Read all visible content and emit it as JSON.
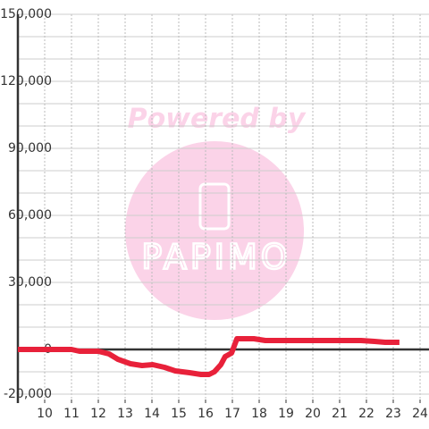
{
  "chart_data": {
    "type": "line",
    "watermark": {
      "line1": "Powered by",
      "line2": "PAPIMO"
    },
    "x": [
      9.0,
      11.0,
      11.3,
      12.0,
      12.4,
      12.73,
      13.2,
      13.63,
      14.03,
      14.47,
      14.87,
      15.4,
      15.83,
      16.13,
      16.33,
      16.57,
      16.73,
      16.97,
      17.17,
      17.8,
      18.23,
      21.8,
      22.3,
      22.7,
      23.23
    ],
    "series": [
      {
        "color": "#e8213a",
        "values": [
          0,
          0,
          -800,
          -800,
          -2000,
          -4400,
          -6400,
          -7200,
          -6800,
          -8000,
          -9600,
          -10400,
          -11200,
          -11200,
          -10000,
          -6800,
          -3200,
          -1600,
          4800,
          4800,
          4000,
          4000,
          3600,
          3200,
          3200
        ]
      }
    ],
    "xlim": [
      9,
      24.333
    ],
    "xticks": [
      10,
      11,
      12,
      13,
      14,
      15,
      16,
      17,
      18,
      19,
      20,
      21,
      22,
      23,
      24
    ],
    "ylim": [
      -24000,
      150000
    ],
    "yticks": [
      {
        "value": -20000,
        "label": "-20,000"
      },
      0,
      {
        "value": 30000,
        "label": "30,000"
      },
      {
        "value": 60000,
        "label": "60,000"
      },
      {
        "value": 90000,
        "label": "90,000"
      },
      {
        "value": 120000,
        "label": "120,000"
      },
      {
        "value": 150000,
        "label": "150,000"
      }
    ],
    "yminor": [
      -10000,
      10000,
      20000,
      40000,
      50000,
      70000,
      80000,
      100000,
      110000,
      130000,
      140000
    ],
    "grid": true
  }
}
